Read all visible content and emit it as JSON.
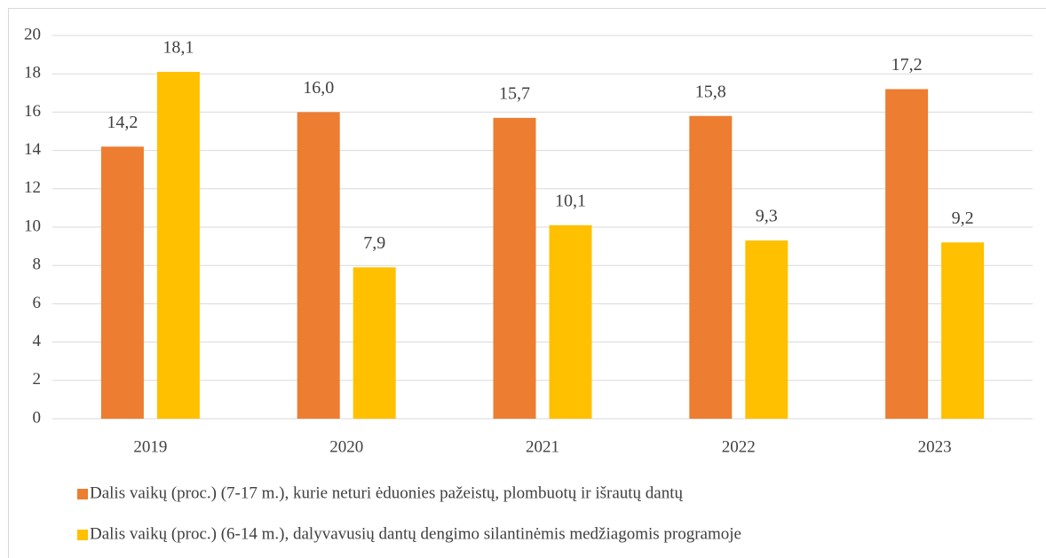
{
  "chart_data": {
    "type": "bar",
    "categories": [
      "2019",
      "2020",
      "2021",
      "2022",
      "2023"
    ],
    "series": [
      {
        "name": "Dalis vaikų (proc.) (7-17 m.), kurie neturi ėduonies pažeistų, plombuotų ir išrautų dantų",
        "color": "#ed7d31",
        "values": [
          14.2,
          16.0,
          15.7,
          15.8,
          17.2
        ],
        "value_labels": [
          "14,2",
          "16,0",
          "15,7",
          "15,8",
          "17,2"
        ]
      },
      {
        "name": "Dalis vaikų (proc.) (6-14 m.), dalyvavusių dantų dengimo silantinėmis medžiagomis programoje",
        "color": "#ffc000",
        "values": [
          18.1,
          7.9,
          10.1,
          9.3,
          9.2
        ],
        "value_labels": [
          "18,1",
          "7,9",
          "10,1",
          "9,3",
          "9,2"
        ]
      }
    ],
    "ylim": [
      0,
      20
    ],
    "yticks": [
      0,
      2,
      4,
      6,
      8,
      10,
      12,
      14,
      16,
      18,
      20
    ],
    "grid": true,
    "legend": "bottom"
  }
}
